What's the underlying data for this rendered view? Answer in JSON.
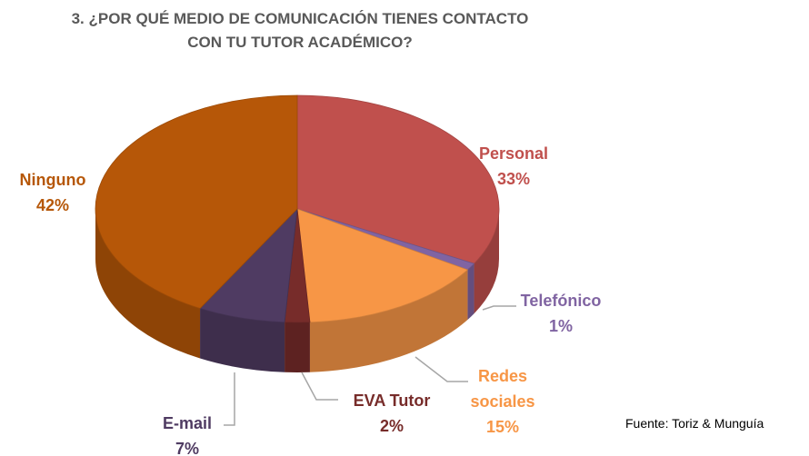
{
  "chart_data": {
    "type": "pie",
    "title": "3. ¿POR QUÉ MEDIO DE COMUNICACIÓN TIENES CONTACTO CON TU TUTOR ACADÉMICO?",
    "categories": [
      "Personal",
      "Telefónico",
      "Redes sociales",
      "EVA Tutor",
      "E-mail",
      "Ninguno"
    ],
    "values": [
      33,
      1,
      15,
      2,
      7,
      42
    ],
    "value_labels": [
      "33%",
      "1%",
      "15%",
      "2%",
      "7%",
      "42%"
    ],
    "colors": [
      "#c0504d",
      "#8064a2",
      "#f79646",
      "#772c2a",
      "#4f3b62",
      "#b65708"
    ],
    "label_colors": [
      "#c0504d",
      "#8064a2",
      "#f79646",
      "#772c2a",
      "#4f3b62",
      "#b65708"
    ],
    "source": "Fuente: Toriz & Munguía"
  }
}
